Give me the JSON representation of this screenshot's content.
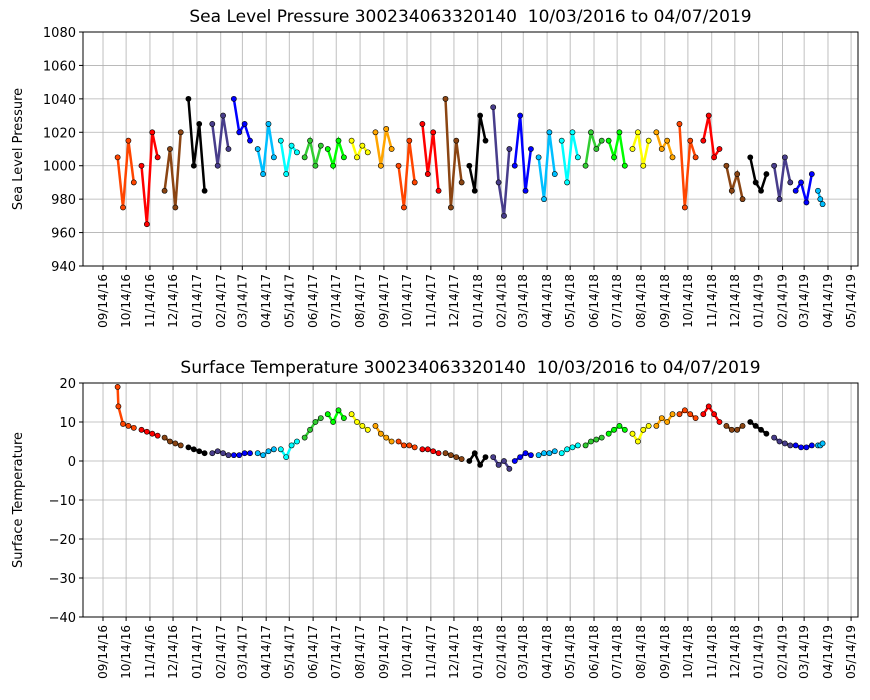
{
  "chart_data": [
    {
      "type": "scatter",
      "title": "Sea Level Pressure 300234063320140  10/03/2016 to 04/07/2019",
      "ylabel": "Sea Level Pressure",
      "xlim": [
        "08/19/16",
        "05/23/19"
      ],
      "ylim": [
        940,
        1080
      ],
      "yticks": [
        940,
        960,
        980,
        1000,
        1020,
        1040,
        1060,
        1080
      ],
      "grid": true,
      "xticks": [
        "09/14/16",
        "10/14/16",
        "11/14/16",
        "12/14/16",
        "01/14/17",
        "02/14/17",
        "03/14/17",
        "04/14/17",
        "05/14/17",
        "06/14/17",
        "07/14/17",
        "08/14/17",
        "09/14/17",
        "10/14/17",
        "11/14/17",
        "12/14/17",
        "01/14/18",
        "02/14/18",
        "03/14/18",
        "04/14/18",
        "05/14/18",
        "06/14/18",
        "07/14/18",
        "08/14/18",
        "09/14/18",
        "10/14/18",
        "11/14/18",
        "12/14/18",
        "01/14/19",
        "02/14/19",
        "03/14/19",
        "04/14/19",
        "05/14/19"
      ],
      "series": [
        {
          "color": "#ff4500",
          "x": [
            "10/03/16",
            "10/10/16",
            "10/17/16",
            "10/24/16"
          ],
          "values": [
            1005,
            975,
            1015,
            990
          ]
        },
        {
          "color": "#ff0000",
          "x": [
            "11/03/16",
            "11/10/16",
            "11/17/16",
            "11/24/16"
          ],
          "values": [
            1000,
            965,
            1020,
            1005
          ]
        },
        {
          "color": "#8b4513",
          "x": [
            "12/03/16",
            "12/10/16",
            "12/17/16",
            "12/24/16"
          ],
          "values": [
            985,
            1010,
            975,
            1020
          ]
        },
        {
          "color": "#000000",
          "x": [
            "01/03/17",
            "01/10/17",
            "01/17/17",
            "01/24/17"
          ],
          "values": [
            1040,
            1000,
            1025,
            985
          ]
        },
        {
          "color": "#483d8b",
          "x": [
            "02/03/17",
            "02/10/17",
            "02/17/17",
            "02/24/17"
          ],
          "values": [
            1025,
            1000,
            1030,
            1010
          ]
        },
        {
          "color": "#0000ff",
          "x": [
            "03/03/17",
            "03/10/17",
            "03/17/17",
            "03/24/17"
          ],
          "values": [
            1040,
            1020,
            1025,
            1015
          ]
        },
        {
          "color": "#00bfff",
          "x": [
            "04/03/17",
            "04/10/17",
            "04/17/17",
            "04/24/17"
          ],
          "values": [
            1010,
            995,
            1025,
            1005
          ]
        },
        {
          "color": "#00ffff",
          "x": [
            "05/03/17",
            "05/10/17",
            "05/17/17",
            "05/24/17"
          ],
          "values": [
            1015,
            995,
            1012,
            1008
          ]
        },
        {
          "color": "#32cd32",
          "x": [
            "06/03/17",
            "06/10/17",
            "06/17/17",
            "06/24/17"
          ],
          "values": [
            1005,
            1015,
            1000,
            1012
          ]
        },
        {
          "color": "#00ff00",
          "x": [
            "07/03/17",
            "07/10/17",
            "07/17/17",
            "07/24/17"
          ],
          "values": [
            1010,
            1000,
            1015,
            1005
          ]
        },
        {
          "color": "#ffff00",
          "x": [
            "08/03/17",
            "08/10/17",
            "08/17/17",
            "08/24/17"
          ],
          "values": [
            1015,
            1005,
            1012,
            1008
          ]
        },
        {
          "color": "#ffa500",
          "x": [
            "09/03/17",
            "09/10/17",
            "09/17/17",
            "09/24/17"
          ],
          "values": [
            1020,
            1000,
            1022,
            1010
          ]
        },
        {
          "color": "#ff4500",
          "x": [
            "10/03/17",
            "10/10/17",
            "10/17/17",
            "10/24/17"
          ],
          "values": [
            1000,
            975,
            1015,
            990
          ]
        },
        {
          "color": "#ff0000",
          "x": [
            "11/03/17",
            "11/10/17",
            "11/17/17",
            "11/24/17"
          ],
          "values": [
            1025,
            995,
            1020,
            985
          ]
        },
        {
          "color": "#8b4513",
          "x": [
            "12/03/17",
            "12/10/17",
            "12/17/17",
            "12/24/17"
          ],
          "values": [
            1040,
            975,
            1015,
            990
          ]
        },
        {
          "color": "#000000",
          "x": [
            "01/03/18",
            "01/10/18",
            "01/17/18",
            "01/24/18"
          ],
          "values": [
            1000,
            985,
            1030,
            1015
          ]
        },
        {
          "color": "#483d8b",
          "x": [
            "02/03/18",
            "02/10/18",
            "02/17/18",
            "02/24/18"
          ],
          "values": [
            1035,
            990,
            970,
            1010
          ]
        },
        {
          "color": "#0000ff",
          "x": [
            "03/03/18",
            "03/10/18",
            "03/17/18",
            "03/24/18"
          ],
          "values": [
            1000,
            1030,
            985,
            1010
          ]
        },
        {
          "color": "#00bfff",
          "x": [
            "04/03/18",
            "04/10/18",
            "04/17/18",
            "04/24/18"
          ],
          "values": [
            1005,
            980,
            1020,
            995
          ]
        },
        {
          "color": "#00ffff",
          "x": [
            "05/03/18",
            "05/10/18",
            "05/17/18",
            "05/24/18"
          ],
          "values": [
            1015,
            990,
            1020,
            1005
          ]
        },
        {
          "color": "#32cd32",
          "x": [
            "06/03/18",
            "06/10/18",
            "06/17/18",
            "06/24/18"
          ],
          "values": [
            1000,
            1020,
            1010,
            1015
          ]
        },
        {
          "color": "#00ff00",
          "x": [
            "07/03/18",
            "07/10/18",
            "07/17/18",
            "07/24/18"
          ],
          "values": [
            1015,
            1005,
            1020,
            1000
          ]
        },
        {
          "color": "#ffff00",
          "x": [
            "08/03/18",
            "08/10/18",
            "08/17/18",
            "08/24/18"
          ],
          "values": [
            1010,
            1020,
            1000,
            1015
          ]
        },
        {
          "color": "#ffa500",
          "x": [
            "09/03/18",
            "09/10/18",
            "09/17/18",
            "09/24/18"
          ],
          "values": [
            1020,
            1010,
            1015,
            1005
          ]
        },
        {
          "color": "#ff4500",
          "x": [
            "10/03/18",
            "10/10/18",
            "10/17/18",
            "10/24/18"
          ],
          "values": [
            1025,
            975,
            1015,
            1005
          ]
        },
        {
          "color": "#ff0000",
          "x": [
            "11/03/18",
            "11/10/18",
            "11/17/18",
            "11/24/18"
          ],
          "values": [
            1015,
            1030,
            1005,
            1010
          ]
        },
        {
          "color": "#8b4513",
          "x": [
            "12/03/18",
            "12/10/18",
            "12/17/18",
            "12/24/18"
          ],
          "values": [
            1000,
            985,
            995,
            980
          ]
        },
        {
          "color": "#000000",
          "x": [
            "01/03/19",
            "01/10/19",
            "01/17/19",
            "01/24/19"
          ],
          "values": [
            1005,
            990,
            985,
            995
          ]
        },
        {
          "color": "#483d8b",
          "x": [
            "02/03/19",
            "02/10/19",
            "02/17/19",
            "02/24/19"
          ],
          "values": [
            1000,
            980,
            1005,
            990
          ]
        },
        {
          "color": "#0000ff",
          "x": [
            "03/03/19",
            "03/10/19",
            "03/17/19",
            "03/24/19"
          ],
          "values": [
            985,
            990,
            978,
            995
          ]
        },
        {
          "color": "#00bfff",
          "x": [
            "04/01/19",
            "04/04/19",
            "04/07/19"
          ],
          "values": [
            985,
            980,
            977
          ]
        }
      ]
    },
    {
      "type": "scatter",
      "title": "Surface Temperature 300234063320140  10/03/2016 to 04/07/2019",
      "ylabel": "Surface Temperature",
      "xlim": [
        "08/19/16",
        "05/23/19"
      ],
      "ylim": [
        -40,
        20
      ],
      "yticks": [
        {
          "value": -40,
          "label": "−40"
        },
        {
          "value": -30,
          "label": "−30"
        },
        {
          "value": -20,
          "label": "−20"
        },
        {
          "value": -10,
          "label": "−10"
        },
        0,
        10,
        20
      ],
      "grid": true,
      "xticks": [
        "09/14/16",
        "10/14/16",
        "11/14/16",
        "12/14/16",
        "01/14/17",
        "02/14/17",
        "03/14/17",
        "04/14/17",
        "05/14/17",
        "06/14/17",
        "07/14/17",
        "08/14/17",
        "09/14/17",
        "10/14/17",
        "11/14/17",
        "12/14/17",
        "01/14/18",
        "02/14/18",
        "03/14/18",
        "04/14/18",
        "05/14/18",
        "06/14/18",
        "07/14/18",
        "08/14/18",
        "09/14/18",
        "10/14/18",
        "11/14/18",
        "12/14/18",
        "01/14/19",
        "02/14/19",
        "03/14/19",
        "04/14/19",
        "05/14/19"
      ],
      "series": [
        {
          "color": "#ff4500",
          "x": [
            "10/03/16",
            "10/04/16",
            "10/10/16",
            "10/17/16",
            "10/24/16"
          ],
          "values": [
            19,
            14,
            9.5,
            9,
            8.5
          ]
        },
        {
          "color": "#ff0000",
          "x": [
            "11/03/16",
            "11/10/16",
            "11/17/16",
            "11/24/16"
          ],
          "values": [
            8,
            7.5,
            7,
            6.5
          ]
        },
        {
          "color": "#8b4513",
          "x": [
            "12/03/16",
            "12/10/16",
            "12/17/16",
            "12/24/16"
          ],
          "values": [
            6,
            5,
            4.5,
            4
          ]
        },
        {
          "color": "#000000",
          "x": [
            "01/03/17",
            "01/10/17",
            "01/17/17",
            "01/24/17"
          ],
          "values": [
            3.5,
            3,
            2.5,
            2
          ]
        },
        {
          "color": "#483d8b",
          "x": [
            "02/03/17",
            "02/10/17",
            "02/17/17",
            "02/24/17"
          ],
          "values": [
            2,
            2.5,
            2,
            1.5
          ]
        },
        {
          "color": "#0000ff",
          "x": [
            "03/03/17",
            "03/10/17",
            "03/17/17",
            "03/24/17"
          ],
          "values": [
            1.5,
            1.5,
            2,
            2
          ]
        },
        {
          "color": "#00bfff",
          "x": [
            "04/03/17",
            "04/10/17",
            "04/17/17",
            "04/24/17"
          ],
          "values": [
            2,
            1.5,
            2.5,
            3
          ]
        },
        {
          "color": "#00ffff",
          "x": [
            "05/03/17",
            "05/10/17",
            "05/17/17",
            "05/24/17"
          ],
          "values": [
            3,
            1,
            4,
            5
          ]
        },
        {
          "color": "#32cd32",
          "x": [
            "06/03/17",
            "06/10/17",
            "06/17/17",
            "06/24/17"
          ],
          "values": [
            6,
            8,
            10,
            11
          ]
        },
        {
          "color": "#00ff00",
          "x": [
            "07/03/17",
            "07/10/17",
            "07/17/17",
            "07/24/17"
          ],
          "values": [
            12,
            10,
            13,
            11
          ]
        },
        {
          "color": "#ffff00",
          "x": [
            "08/03/17",
            "08/10/17",
            "08/17/17",
            "08/24/17"
          ],
          "values": [
            12,
            10,
            9,
            8
          ]
        },
        {
          "color": "#ffa500",
          "x": [
            "09/03/17",
            "09/10/17",
            "09/17/17",
            "09/24/17"
          ],
          "values": [
            9,
            7,
            6,
            5
          ]
        },
        {
          "color": "#ff4500",
          "x": [
            "10/03/17",
            "10/10/17",
            "10/17/17",
            "10/24/17"
          ],
          "values": [
            5,
            4,
            4,
            3.5
          ]
        },
        {
          "color": "#ff0000",
          "x": [
            "11/03/17",
            "11/10/17",
            "11/17/17",
            "11/24/17"
          ],
          "values": [
            3,
            3,
            2.5,
            2
          ]
        },
        {
          "color": "#8b4513",
          "x": [
            "12/03/17",
            "12/10/17",
            "12/17/17",
            "12/24/17"
          ],
          "values": [
            2,
            1.5,
            1,
            0.5
          ]
        },
        {
          "color": "#000000",
          "x": [
            "01/03/18",
            "01/10/18",
            "01/17/18",
            "01/24/18"
          ],
          "values": [
            0,
            2,
            -1,
            1
          ]
        },
        {
          "color": "#483d8b",
          "x": [
            "02/03/18",
            "02/10/18",
            "02/17/18",
            "02/24/18"
          ],
          "values": [
            1,
            -1,
            0,
            -2
          ]
        },
        {
          "color": "#0000ff",
          "x": [
            "03/03/18",
            "03/10/18",
            "03/17/18",
            "03/24/18"
          ],
          "values": [
            0,
            1,
            2,
            1.5
          ]
        },
        {
          "color": "#00bfff",
          "x": [
            "04/03/18",
            "04/10/18",
            "04/17/18",
            "04/24/18"
          ],
          "values": [
            1.5,
            2,
            2,
            2.5
          ]
        },
        {
          "color": "#00ffff",
          "x": [
            "05/03/18",
            "05/10/18",
            "05/17/18",
            "05/24/18"
          ],
          "values": [
            2,
            3,
            3.5,
            4
          ]
        },
        {
          "color": "#32cd32",
          "x": [
            "06/03/18",
            "06/10/18",
            "06/17/18",
            "06/24/18"
          ],
          "values": [
            4,
            5,
            5.5,
            6
          ]
        },
        {
          "color": "#00ff00",
          "x": [
            "07/03/18",
            "07/10/18",
            "07/17/18",
            "07/24/18"
          ],
          "values": [
            7,
            8,
            9,
            8
          ]
        },
        {
          "color": "#ffff00",
          "x": [
            "08/03/18",
            "08/10/18",
            "08/17/18",
            "08/24/18"
          ],
          "values": [
            7,
            5,
            8,
            9
          ]
        },
        {
          "color": "#ffa500",
          "x": [
            "09/03/18",
            "09/10/18",
            "09/17/18",
            "09/24/18"
          ],
          "values": [
            9,
            11,
            10,
            12
          ]
        },
        {
          "color": "#ff4500",
          "x": [
            "10/03/18",
            "10/10/18",
            "10/17/18",
            "10/24/18"
          ],
          "values": [
            12,
            13,
            12,
            11
          ]
        },
        {
          "color": "#ff0000",
          "x": [
            "11/03/18",
            "11/10/18",
            "11/17/18",
            "11/24/18"
          ],
          "values": [
            12,
            14,
            12,
            10
          ]
        },
        {
          "color": "#8b4513",
          "x": [
            "12/03/18",
            "12/10/18",
            "12/17/18",
            "12/24/18"
          ],
          "values": [
            9,
            8,
            8,
            9
          ]
        },
        {
          "color": "#000000",
          "x": [
            "01/03/19",
            "01/10/19",
            "01/17/19",
            "01/24/19"
          ],
          "values": [
            10,
            9,
            8,
            7
          ]
        },
        {
          "color": "#483d8b",
          "x": [
            "02/03/19",
            "02/10/19",
            "02/17/19",
            "02/24/19"
          ],
          "values": [
            6,
            5,
            4.5,
            4
          ]
        },
        {
          "color": "#0000ff",
          "x": [
            "03/03/19",
            "03/10/19",
            "03/17/19",
            "03/24/19"
          ],
          "values": [
            4,
            3.5,
            3.5,
            4
          ]
        },
        {
          "color": "#00bfff",
          "x": [
            "04/01/19",
            "04/04/19",
            "04/07/19"
          ],
          "values": [
            4,
            4,
            4.5
          ]
        }
      ]
    }
  ]
}
